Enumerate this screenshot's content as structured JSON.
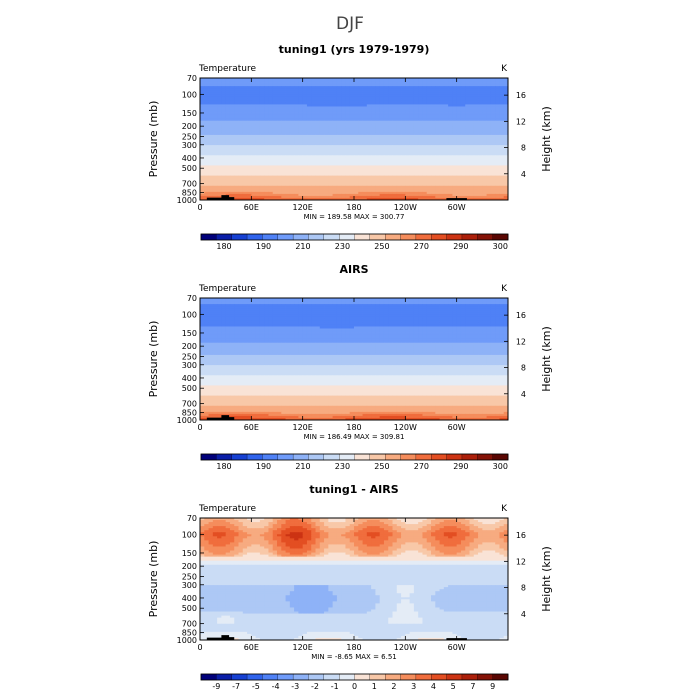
{
  "figure": {
    "title": "DJF"
  },
  "chart_data": [
    {
      "type": "heatmap",
      "title": "tuning1 (yrs 1979-1979)",
      "left_label": "Temperature",
      "right_label": "K",
      "ylabel": "Pressure (mb)",
      "y2label": "Height (km)",
      "x_ticks": [
        "0",
        "60E",
        "120E",
        "180",
        "120W",
        "60W"
      ],
      "x_tick_lon": [
        0,
        60,
        120,
        180,
        240,
        300
      ],
      "xlim": [
        0,
        360
      ],
      "p_ticks": [
        "70",
        "100",
        "150",
        "200",
        "250",
        "300",
        "400",
        "500",
        "700",
        "850",
        "1000"
      ],
      "p_tick_values": [
        70,
        100,
        150,
        200,
        250,
        300,
        400,
        500,
        700,
        850,
        1000
      ],
      "ylim": [
        1000,
        70
      ],
      "y_scale": "log",
      "z_ticks": [
        "4",
        "8",
        "12",
        "16"
      ],
      "z_tick_values": [
        4,
        8,
        12,
        16
      ],
      "min_max": "MIN = 189.58   MAX = 300.77",
      "min": 189.58,
      "max": 300.77,
      "colorbar": {
        "colors": [
          "#00007a",
          "#0a1ea8",
          "#1640d2",
          "#2f63ec",
          "#4f81f6",
          "#6f9bf9",
          "#8eb2f7",
          "#adc8f5",
          "#cadcf5",
          "#e4ecf6",
          "#f9e3d6",
          "#f8c8a8",
          "#f7ab80",
          "#f58d5c",
          "#f06d3d",
          "#e34e22",
          "#cc3313",
          "#ac1f0a",
          "#851207",
          "#5a0703"
        ],
        "levels": [
          175,
          180,
          185,
          190,
          200,
          210,
          220,
          230,
          240,
          250,
          260,
          270,
          280,
          285,
          290,
          295,
          300,
          305,
          310
        ],
        "tick_labels": [
          "180",
          "190",
          "210",
          "230",
          "250",
          "270",
          "290",
          "300"
        ]
      },
      "field": {
        "type": "temperature",
        "p_levels": [
          70,
          100,
          150,
          200,
          250,
          300,
          400,
          500,
          700,
          850,
          1000
        ],
        "t_profile": [
          204,
          196,
          205,
          213,
          222,
          229,
          243,
          253,
          268,
          279,
          290
        ]
      }
    },
    {
      "type": "heatmap",
      "title": "AIRS",
      "left_label": "Temperature",
      "right_label": "K",
      "ylabel": "Pressure (mb)",
      "y2label": "Height (km)",
      "x_ticks": [
        "0",
        "60E",
        "120E",
        "180",
        "120W",
        "60W"
      ],
      "x_tick_lon": [
        0,
        60,
        120,
        180,
        240,
        300
      ],
      "xlim": [
        0,
        360
      ],
      "p_ticks": [
        "70",
        "100",
        "150",
        "200",
        "250",
        "300",
        "400",
        "500",
        "700",
        "850",
        "1000"
      ],
      "p_tick_values": [
        70,
        100,
        150,
        200,
        250,
        300,
        400,
        500,
        700,
        850,
        1000
      ],
      "ylim": [
        1000,
        70
      ],
      "y_scale": "log",
      "z_ticks": [
        "4",
        "8",
        "12",
        "16"
      ],
      "z_tick_values": [
        4,
        8,
        12,
        16
      ],
      "min_max": "MIN = 186.49   MAX = 309.81",
      "min": 186.49,
      "max": 309.81,
      "colorbar": {
        "colors": [
          "#00007a",
          "#0a1ea8",
          "#1640d2",
          "#2f63ec",
          "#4f81f6",
          "#6f9bf9",
          "#8eb2f7",
          "#adc8f5",
          "#cadcf5",
          "#e4ecf6",
          "#f9e3d6",
          "#f8c8a8",
          "#f7ab80",
          "#f58d5c",
          "#f06d3d",
          "#e34e22",
          "#cc3313",
          "#ac1f0a",
          "#851207",
          "#5a0703"
        ],
        "levels": [
          175,
          180,
          185,
          190,
          200,
          210,
          220,
          230,
          240,
          250,
          260,
          270,
          280,
          285,
          290,
          295,
          300,
          305,
          310
        ],
        "tick_labels": [
          "180",
          "190",
          "210",
          "230",
          "250",
          "270",
          "290",
          "300"
        ]
      },
      "field": {
        "type": "temperature",
        "p_levels": [
          70,
          100,
          150,
          200,
          250,
          300,
          400,
          500,
          700,
          850,
          1000
        ],
        "t_profile": [
          203,
          194,
          204,
          213,
          222,
          229,
          243,
          253,
          268,
          280,
          293
        ]
      }
    },
    {
      "type": "heatmap",
      "title": "tuning1 - AIRS",
      "left_label": "Temperature",
      "right_label": "K",
      "ylabel": "Pressure (mb)",
      "y2label": "Height (km)",
      "x_ticks": [
        "0",
        "60E",
        "120E",
        "180",
        "120W",
        "60W"
      ],
      "x_tick_lon": [
        0,
        60,
        120,
        180,
        240,
        300
      ],
      "xlim": [
        0,
        360
      ],
      "p_ticks": [
        "70",
        "100",
        "150",
        "200",
        "250",
        "300",
        "400",
        "500",
        "700",
        "850",
        "1000"
      ],
      "p_tick_values": [
        70,
        100,
        150,
        200,
        250,
        300,
        400,
        500,
        700,
        850,
        1000
      ],
      "ylim": [
        1000,
        70
      ],
      "y_scale": "log",
      "z_ticks": [
        "4",
        "8",
        "12",
        "16"
      ],
      "z_tick_values": [
        4,
        8,
        12,
        16
      ],
      "min_max": "MIN =   -8.65   MAX =    6.51",
      "min": -8.65,
      "max": 6.51,
      "colorbar": {
        "colors": [
          "#00007a",
          "#0a1ea8",
          "#1640d2",
          "#2f63ec",
          "#4f81f6",
          "#6f9bf9",
          "#8eb2f7",
          "#adc8f5",
          "#cadcf5",
          "#e4ecf6",
          "#f9e3d6",
          "#f8c8a8",
          "#f7ab80",
          "#f58d5c",
          "#f06d3d",
          "#e34e22",
          "#cc3313",
          "#ac1f0a",
          "#851207",
          "#5a0703"
        ],
        "levels": [
          -9,
          -8,
          -7,
          -6,
          -5,
          -4,
          -3,
          -2,
          -1,
          0,
          1,
          2,
          3,
          4,
          5,
          6,
          7,
          8,
          9
        ],
        "tick_labels": [
          "-9",
          "-7",
          "-5",
          "-4",
          "-3",
          "-2",
          "-1",
          "0",
          "1",
          "2",
          "3",
          "4",
          "5",
          "7",
          "9"
        ]
      },
      "field": {
        "type": "difference",
        "p_levels": [
          70,
          100,
          150,
          200,
          250,
          300,
          400,
          500,
          700,
          850,
          1000
        ],
        "d_profile": [
          1.5,
          4.0,
          2.0,
          -1.5,
          -1.8,
          -2.0,
          -2.3,
          -2.1,
          -1.6,
          -1.2,
          -0.5
        ]
      }
    }
  ]
}
